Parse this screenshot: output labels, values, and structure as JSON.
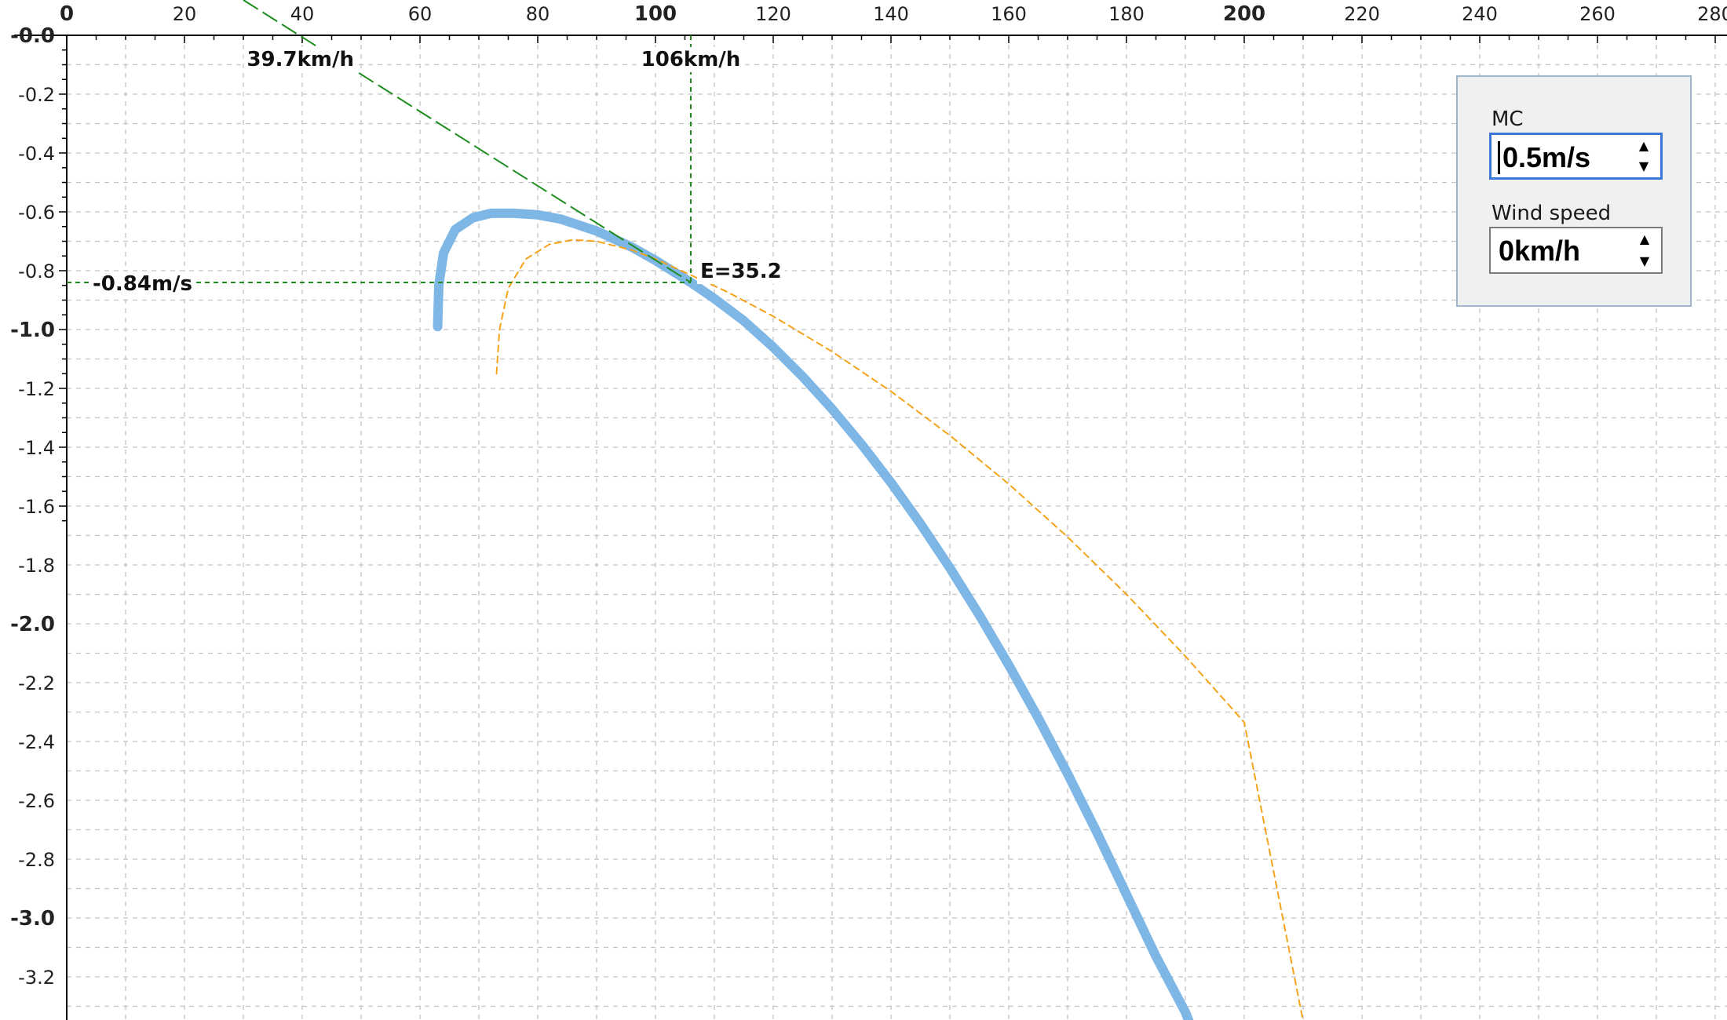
{
  "chart_data": {
    "type": "line",
    "xlim": [
      0,
      280
    ],
    "ylim": [
      -3.35,
      0.0
    ],
    "x_ticks": [
      0,
      20,
      40,
      60,
      80,
      100,
      120,
      140,
      160,
      180,
      200,
      220,
      240,
      260,
      280
    ],
    "x_bold_ticks": [
      0,
      100,
      200
    ],
    "x_tick_labels": [
      "0",
      "20",
      "40",
      "60",
      "80",
      "100",
      "120",
      "140",
      "160",
      "180",
      "200",
      "220",
      "240",
      "260",
      "280"
    ],
    "y_ticks": [
      0.0,
      -0.2,
      -0.4,
      -0.6,
      -0.8,
      -1.0,
      -1.2,
      -1.4,
      -1.6,
      -1.8,
      -2.0,
      -2.2,
      -2.4,
      -2.6,
      -2.8,
      -3.0,
      -3.2
    ],
    "y_bold_ticks": [
      0.0,
      -1.0,
      -2.0,
      -3.0
    ],
    "y_tick_labels": [
      "-0.0",
      "-0.2",
      "-0.4",
      "-0.6",
      "-0.8",
      "-1.0",
      "-1.2",
      "-1.4",
      "-1.6",
      "-1.8",
      "-2.0",
      "-2.2",
      "-2.4",
      "-2.6",
      "-2.8",
      "-3.0",
      "-3.2"
    ],
    "grid": true,
    "series": [
      {
        "color": "#7eb6e6",
        "style": "solid-thick",
        "x": [
          63,
          63.2,
          64,
          66,
          69,
          72,
          76,
          80,
          84,
          90,
          96,
          100,
          106,
          110,
          115,
          120,
          125,
          130,
          135,
          140,
          145,
          150,
          155,
          160,
          165,
          170,
          175,
          180,
          185,
          190,
          191
        ],
        "y": [
          -0.99,
          -0.85,
          -0.74,
          -0.66,
          -0.62,
          -0.605,
          -0.605,
          -0.61,
          -0.625,
          -0.665,
          -0.72,
          -0.765,
          -0.84,
          -0.895,
          -0.97,
          -1.06,
          -1.16,
          -1.27,
          -1.39,
          -1.52,
          -1.66,
          -1.81,
          -1.97,
          -2.14,
          -2.32,
          -2.51,
          -2.71,
          -2.92,
          -3.13,
          -3.32,
          -3.37
        ]
      },
      {
        "color": "#f5a31a",
        "style": "dashed-thin",
        "x": [
          73,
          73.5,
          75,
          78,
          82,
          86,
          90,
          96,
          100,
          106,
          112,
          120,
          130,
          140,
          150,
          160,
          170,
          180,
          190,
          200,
          210
        ],
        "y": [
          -1.15,
          -1.0,
          -0.86,
          -0.76,
          -0.71,
          -0.695,
          -0.7,
          -0.73,
          -0.76,
          -0.815,
          -0.87,
          -0.955,
          -1.075,
          -1.21,
          -1.36,
          -1.525,
          -1.705,
          -1.9,
          -2.11,
          -2.335,
          -3.35
        ]
      }
    ],
    "tangent_line": {
      "color": "#1e8c1e",
      "x": [
        30,
        106
      ],
      "y": [
        0.12,
        -0.84
      ]
    },
    "markers": {
      "x_intercept_label": "39.7km/h",
      "x_intercept_value": 39.7,
      "best_speed_label": "106km/h",
      "best_speed_value": 106,
      "sink_label": "-0.84m/s",
      "sink_value": -0.84,
      "ld_label": "E=35.2"
    }
  },
  "controls": {
    "mc": {
      "label": "MC",
      "value": "0.5m/s"
    },
    "wind": {
      "label": "Wind speed",
      "value": "0km/h"
    }
  }
}
